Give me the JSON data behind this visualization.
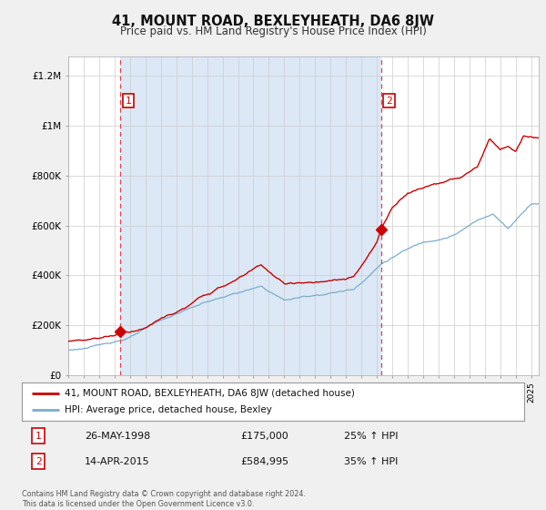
{
  "title": "41, MOUNT ROAD, BEXLEYHEATH, DA6 8JW",
  "subtitle": "Price paid vs. HM Land Registry's House Price Index (HPI)",
  "ylabel_ticks": [
    "£0",
    "£200K",
    "£400K",
    "£600K",
    "£800K",
    "£1M",
    "£1.2M"
  ],
  "ytick_values": [
    0,
    200000,
    400000,
    600000,
    800000,
    1000000,
    1200000
  ],
  "ylim": [
    0,
    1280000
  ],
  "sale1_year": 1998.38,
  "sale1_price": 175000,
  "sale2_year": 2015.28,
  "sale2_price": 584995,
  "legend_line1": "41, MOUNT ROAD, BEXLEYHEATH, DA6 8JW (detached house)",
  "legend_line2": "HPI: Average price, detached house, Bexley",
  "table_row1": [
    "1",
    "26-MAY-1998",
    "£175,000",
    "25% ↑ HPI"
  ],
  "table_row2": [
    "2",
    "14-APR-2015",
    "£584,995",
    "35% ↑ HPI"
  ],
  "footer": "Contains HM Land Registry data © Crown copyright and database right 2024.\nThis data is licensed under the Open Government Licence v3.0.",
  "line_color_red": "#cc0000",
  "line_color_blue": "#7aadcc",
  "vline_color": "#dd4444",
  "fill_color": "#dce8f5",
  "bg_color": "#f0f0f0",
  "plot_bg": "#ffffff",
  "grid_color": "#cccccc"
}
